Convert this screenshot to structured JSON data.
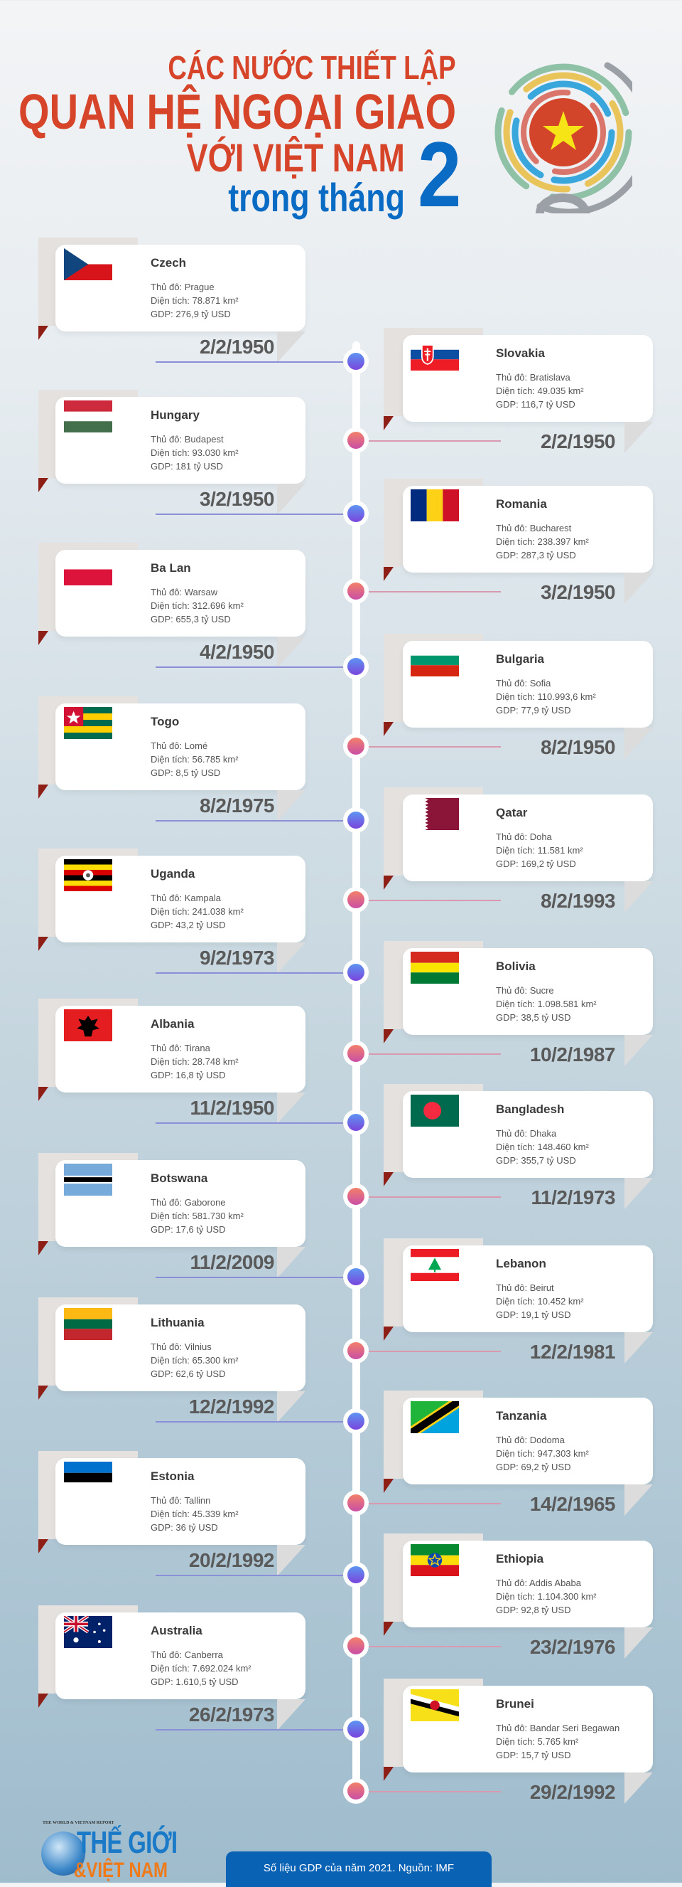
{
  "header": {
    "line1": "CÁC NƯỚC THIẾT LẬP",
    "line2": "QUAN HỆ NGOẠI GIAO",
    "line3": "VỚI VIỆT NAM",
    "line4": "trong tháng",
    "month": "2",
    "colors": {
      "red": "#d6452a",
      "blue": "#0a6bc4"
    }
  },
  "labels": {
    "capital": "Thủ đô: ",
    "area": "Diện tích: ",
    "gdp": "GDP: "
  },
  "countries": [
    {
      "side": "left",
      "name": "Czech",
      "capital": "Prague",
      "area": "78.871 km²",
      "gdp": "276,9 tỷ USD",
      "date": "2/2/1950",
      "flag": "czech-flag"
    },
    {
      "side": "right",
      "name": "Slovakia",
      "capital": "Bratislava",
      "area": "49.035 km²",
      "gdp": "116,7 tỷ USD",
      "date": "2/2/1950",
      "flag": "slovakia-flag"
    },
    {
      "side": "left",
      "name": "Hungary",
      "capital": "Budapest",
      "area": "93.030 km²",
      "gdp": "181 tỷ USD",
      "date": "3/2/1950",
      "flag": "hungary-flag"
    },
    {
      "side": "right",
      "name": "Romania",
      "capital": "Bucharest",
      "area": "238.397 km²",
      "gdp": "287,3 tỷ USD",
      "date": "3/2/1950",
      "flag": "romania-flag"
    },
    {
      "side": "left",
      "name": "Ba Lan",
      "capital": "Warsaw",
      "area": "312.696 km²",
      "gdp": "655,3 tỷ USD",
      "date": "4/2/1950",
      "flag": "poland-flag"
    },
    {
      "side": "right",
      "name": "Bulgaria",
      "capital": "Sofia",
      "area": "110.993,6 km²",
      "gdp": "77,9 tỷ USD",
      "date": "8/2/1950",
      "flag": "bulgaria-flag"
    },
    {
      "side": "left",
      "name": "Togo",
      "capital": "Lomé",
      "area": "56.785 km²",
      "gdp": "8,5 tỷ USD",
      "date": "8/2/1975",
      "flag": "togo-flag"
    },
    {
      "side": "right",
      "name": "Qatar",
      "capital": "Doha",
      "area": "11.581 km²",
      "gdp": "169,2 tỷ USD",
      "date": "8/2/1993",
      "flag": "qatar-flag"
    },
    {
      "side": "left",
      "name": "Uganda",
      "capital": "Kampala",
      "area": "241.038 km²",
      "gdp": "43,2 tỷ USD",
      "date": "9/2/1973",
      "flag": "uganda-flag"
    },
    {
      "side": "right",
      "name": "Bolivia",
      "capital": "Sucre",
      "area": "1.098.581 km²",
      "gdp": "38,5 tỷ USD",
      "date": "10/2/1987",
      "flag": "bolivia-flag"
    },
    {
      "side": "left",
      "name": "Albania",
      "capital": "Tirana",
      "area": "28.748 km²",
      "gdp": "16,8 tỷ USD",
      "date": "11/2/1950",
      "flag": "albania-flag"
    },
    {
      "side": "right",
      "name": "Bangladesh",
      "capital": "Dhaka",
      "area": "148.460 km²",
      "gdp": "355,7 tỷ USD",
      "date": "11/2/1973",
      "flag": "bangladesh-flag"
    },
    {
      "side": "left",
      "name": "Botswana",
      "capital": "Gaborone",
      "area": "581.730 km²",
      "gdp": "17,6 tỷ USD",
      "date": "11/2/2009",
      "flag": "botswana-flag"
    },
    {
      "side": "right",
      "name": "Lebanon",
      "capital": "Beirut",
      "area": "10.452 km²",
      "gdp": "19,1 tỷ USD",
      "date": "12/2/1981",
      "flag": "lebanon-flag"
    },
    {
      "side": "left",
      "name": "Lithuania",
      "capital": "Vilnius",
      "area": "65.300 km²",
      "gdp": "62,6 tỷ USD",
      "date": "12/2/1992",
      "flag": "lithuania-flag"
    },
    {
      "side": "right",
      "name": "Tanzania",
      "capital": "Dodoma",
      "area": "947.303 km²",
      "gdp": "69,2 tỷ USD",
      "date": "14/2/1965",
      "flag": "tanzania-flag"
    },
    {
      "side": "left",
      "name": "Estonia",
      "capital": "Tallinn",
      "area": "45.339 km²",
      "gdp": "36 tỷ USD",
      "date": "20/2/1992",
      "flag": "estonia-flag"
    },
    {
      "side": "right",
      "name": "Ethiopia",
      "capital": "Addis Ababa",
      "area": "1.104.300 km²",
      "gdp": "92,8 tỷ USD",
      "date": "23/2/1976",
      "flag": "ethiopia-flag"
    },
    {
      "side": "left",
      "name": "Australia",
      "capital": "Canberra",
      "area": "7.692.024 km²",
      "gdp": "1.610,5 tỷ USD",
      "date": "26/2/1973",
      "flag": "australia-flag"
    },
    {
      "side": "right",
      "name": "Brunei",
      "capital": "Bandar Seri Begawan",
      "area": "5.765 km²",
      "gdp": "15,7 tỷ USD",
      "date": "29/2/1992",
      "flag": "brunei-flag"
    }
  ],
  "footer": {
    "logo_tagline": "THE WORLD & VIETNAM REPORT",
    "logo_line1": "THẾ GIỚI",
    "logo_line2": "&VIỆT NAM",
    "source": "Số liệu GDP của năm 2021. Nguồn: IMF"
  }
}
